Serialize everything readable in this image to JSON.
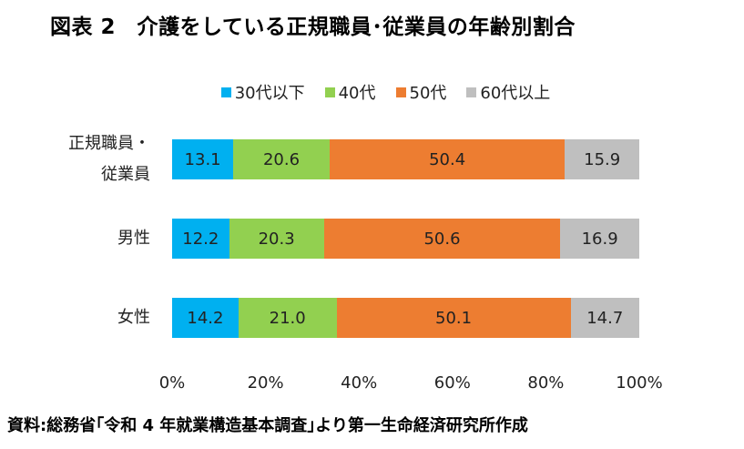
{
  "chart_data": {
    "type": "bar",
    "orientation": "horizontal-stacked-100",
    "title": "図表 2　介護をしている正規職員･従業員の年齢別割合",
    "categories": [
      "正規職員・\n従業員",
      "男性",
      "女性"
    ],
    "series": [
      {
        "name": "30代以下",
        "color": "#00B0F0",
        "values": [
          13.1,
          12.2,
          14.2
        ]
      },
      {
        "name": "40代",
        "color": "#92D050",
        "values": [
          20.6,
          20.3,
          21.0
        ]
      },
      {
        "name": "50代",
        "color": "#ED7D31",
        "values": [
          50.4,
          50.6,
          50.1
        ]
      },
      {
        "name": "60代以上",
        "color": "#BFBFBF",
        "values": [
          15.9,
          16.9,
          14.7
        ]
      }
    ],
    "xticks": [
      "0%",
      "20%",
      "40%",
      "60%",
      "80%",
      "100%"
    ],
    "xlim": [
      0,
      100
    ],
    "legend": "top",
    "grid": false
  },
  "source": "資料:総務省｢令和 4 年就業構造基本調査｣より第一生命経済研究所作成"
}
